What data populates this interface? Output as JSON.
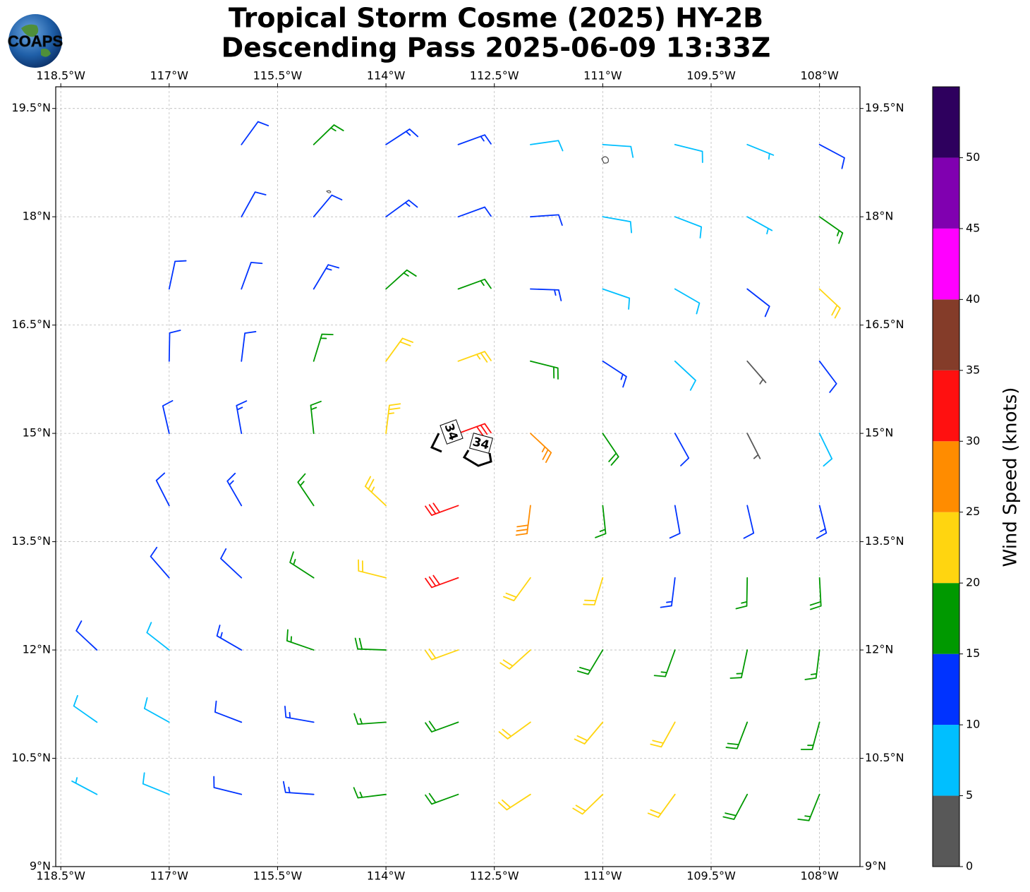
{
  "logo": "COAPS",
  "chart_data": {
    "type": "barbs",
    "title": "Tropical Storm Cosme (2025) HY-2B",
    "subtitle": "Descending Pass 2025-06-09 13:33Z",
    "xlim": [
      -118.57,
      -107.44
    ],
    "ylim": [
      9,
      19.8
    ],
    "xticks": [
      {
        "value": -118.5,
        "label": "118.5°W"
      },
      {
        "value": -117,
        "label": "117°W"
      },
      {
        "value": -115.5,
        "label": "115.5°W"
      },
      {
        "value": -114,
        "label": "114°W"
      },
      {
        "value": -112.5,
        "label": "112.5°W"
      },
      {
        "value": -111,
        "label": "111°W"
      },
      {
        "value": -109.5,
        "label": "109.5°W"
      },
      {
        "value": -108,
        "label": "108°W"
      }
    ],
    "yticks": [
      {
        "value": 9,
        "label": "9°N"
      },
      {
        "value": 10.5,
        "label": "10.5°N"
      },
      {
        "value": 12,
        "label": "12°N"
      },
      {
        "value": 13.5,
        "label": "13.5°N"
      },
      {
        "value": 15,
        "label": "15°N"
      },
      {
        "value": 16.5,
        "label": "16.5°N"
      },
      {
        "value": 18,
        "label": "18°N"
      },
      {
        "value": 19.5,
        "label": "19.5°N"
      }
    ],
    "grid": true,
    "lons": [
      -118,
      -117,
      -116,
      -115,
      -114,
      -113,
      -112,
      -111,
      -110,
      -109,
      -108
    ],
    "lats": [
      19,
      18,
      17,
      16,
      15,
      14,
      13,
      12,
      11,
      10
    ],
    "speed": [
      [
        null,
        null,
        12,
        16,
        13,
        13,
        8,
        8,
        8,
        7,
        11
      ],
      [
        null,
        null,
        12,
        12,
        14,
        12,
        12,
        8,
        8,
        6,
        17
      ],
      [
        null,
        12,
        12,
        14,
        17,
        15,
        13,
        9,
        9,
        11,
        22
      ],
      [
        null,
        12,
        12,
        15,
        22,
        24,
        19,
        14,
        9,
        4,
        12
      ],
      [
        null,
        12,
        13,
        16,
        24,
        32,
        27,
        18,
        12,
        4,
        8
      ],
      [
        null,
        12,
        13,
        17,
        24,
        32,
        28,
        17,
        12,
        10,
        13
      ],
      [
        null,
        11,
        12,
        17,
        21,
        30,
        22,
        20,
        13,
        17,
        18
      ],
      [
        11,
        9,
        13,
        16,
        18,
        21,
        22,
        19,
        17,
        17,
        17
      ],
      [
        8,
        8,
        12,
        14,
        17,
        19,
        22,
        21,
        22,
        18,
        17
      ],
      [
        7,
        8,
        12,
        13,
        17,
        19,
        21,
        22,
        21,
        18,
        17
      ]
    ],
    "direction": [
      [
        null,
        null,
        36,
        46,
        57,
        70,
        82,
        94,
        104,
        112,
        118
      ],
      [
        null,
        null,
        29,
        40,
        54,
        70,
        86,
        100,
        111,
        119,
        125
      ],
      [
        null,
        12,
        20,
        31,
        48,
        70,
        92,
        109,
        120,
        128,
        133
      ],
      [
        null,
        1,
        7,
        17,
        36,
        70,
        104,
        123,
        133,
        139,
        143
      ],
      [
        null,
        347,
        350,
        354,
        7,
        70,
        133,
        146,
        151,
        153,
        154
      ],
      [
        null,
        333,
        330,
        326,
        313,
        250,
        187,
        174,
        170,
        167,
        166
      ],
      [
        null,
        319,
        313,
        303,
        284,
        250,
        216,
        197,
        187,
        181,
        177
      ],
      [
        313,
        308,
        300,
        289,
        272,
        250,
        228,
        211,
        200,
        192,
        187
      ],
      [
        305,
        299,
        291,
        280,
        266,
        250,
        234,
        220,
        209,
        201,
        195
      ],
      [
        298,
        292,
        284,
        274,
        263,
        250,
        237,
        226,
        216,
        208,
        202
      ]
    ],
    "colorbar": {
      "label": "Wind Speed (knots)",
      "clim": [
        0,
        55
      ],
      "ticks": [
        0,
        5,
        10,
        15,
        20,
        25,
        30,
        35,
        40,
        45,
        50
      ],
      "colors": [
        "#585858",
        "#00bfff",
        "#0033ff",
        "#009900",
        "#ffd510",
        "#ff8c00",
        "#ff1010",
        "#843c29",
        "#ff00ff",
        "#8000b0",
        "#2e005e"
      ]
    },
    "contour_level": 34
  }
}
